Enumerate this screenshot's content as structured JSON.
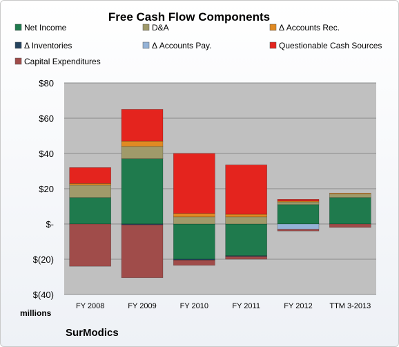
{
  "chart_data": {
    "type": "bar",
    "stacked": true,
    "title": "Free Cash Flow Components",
    "categories": [
      "FY 2008",
      "FY 2009",
      "FY 2010",
      "FY 2011",
      "FY 2012",
      "TTM 3-2013"
    ],
    "series": [
      {
        "name": "Net Income",
        "color": "#1f7a4d",
        "values": [
          15,
          37,
          -20,
          -18,
          11,
          15
        ]
      },
      {
        "name": "D&A",
        "color": "#a09a6a",
        "values": [
          7,
          7,
          4,
          4,
          1.5,
          2
        ]
      },
      {
        "name": "Δ Accounts Rec.",
        "color": "#e08a22",
        "values": [
          1,
          3,
          2,
          1.5,
          0.5,
          0.5
        ]
      },
      {
        "name": "Δ Inventories",
        "color": "#25435e",
        "values": [
          0,
          -0.5,
          -0.5,
          -0.5,
          0,
          0
        ]
      },
      {
        "name": "Δ Accounts Pay.",
        "color": "#95b3d7",
        "values": [
          0,
          0,
          0,
          0,
          -3,
          0
        ]
      },
      {
        "name": "Questionable Cash Sources",
        "color": "#e4241e",
        "values": [
          9,
          18,
          34,
          28,
          1,
          0
        ]
      },
      {
        "name": "Capital Expenditures",
        "color": "#a04c4a",
        "values": [
          -24,
          -30,
          -3,
          -1.5,
          -1,
          -2
        ]
      }
    ],
    "ylim": [
      -40,
      80
    ],
    "yticks": [
      80,
      60,
      40,
      20,
      0,
      -20,
      -40
    ],
    "ytick_labels": [
      "$80",
      "$60",
      "$40",
      "$20",
      "$-",
      "$(20)",
      "$(40)"
    ],
    "ylabel_unit": "millions",
    "grid": true,
    "legend_position": "top",
    "source_label": "SurModics"
  }
}
